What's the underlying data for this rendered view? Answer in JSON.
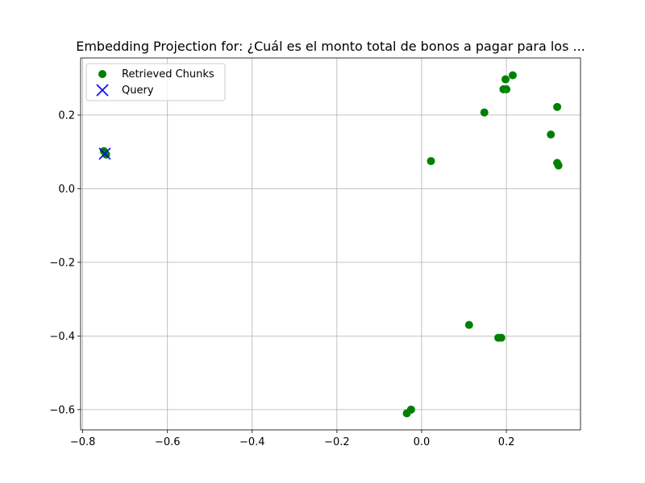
{
  "chart_data": {
    "type": "scatter",
    "title": "Embedding Projection for: ¿Cuál es el monto total de bonos a pagar para los ...",
    "xlabel": "",
    "ylabel": "",
    "xlim": [
      -0.805,
      0.375
    ],
    "ylim": [
      -0.655,
      0.355
    ],
    "xticks": [
      -0.8,
      -0.6,
      -0.4,
      -0.2,
      0.0,
      0.2
    ],
    "xtick_labels": [
      "−0.8",
      "−0.6",
      "−0.4",
      "−0.2",
      "0.0",
      "0.2"
    ],
    "yticks": [
      -0.6,
      -0.4,
      -0.2,
      0.0,
      0.2
    ],
    "ytick_labels": [
      "−0.6",
      "−0.4",
      "−0.2",
      "0.0",
      "0.2"
    ],
    "grid": true,
    "legend_position": "upper-left",
    "series": [
      {
        "name": "Retrieved Chunks",
        "marker": "circle",
        "color": "#008000",
        "points": [
          [
            -0.75,
            0.102
          ],
          [
            -0.745,
            0.093
          ],
          [
            0.215,
            0.308
          ],
          [
            0.198,
            0.297
          ],
          [
            0.193,
            0.27
          ],
          [
            0.2,
            0.27
          ],
          [
            0.148,
            0.207
          ],
          [
            0.32,
            0.222
          ],
          [
            0.305,
            0.147
          ],
          [
            0.022,
            0.075
          ],
          [
            0.32,
            0.07
          ],
          [
            0.323,
            0.063
          ],
          [
            0.112,
            -0.37
          ],
          [
            0.181,
            -0.405
          ],
          [
            0.188,
            -0.405
          ],
          [
            -0.025,
            -0.6
          ],
          [
            -0.035,
            -0.61
          ]
        ]
      },
      {
        "name": "Query",
        "marker": "x",
        "color": "#0000ff",
        "points": [
          [
            -0.748,
            0.095
          ]
        ]
      }
    ]
  }
}
